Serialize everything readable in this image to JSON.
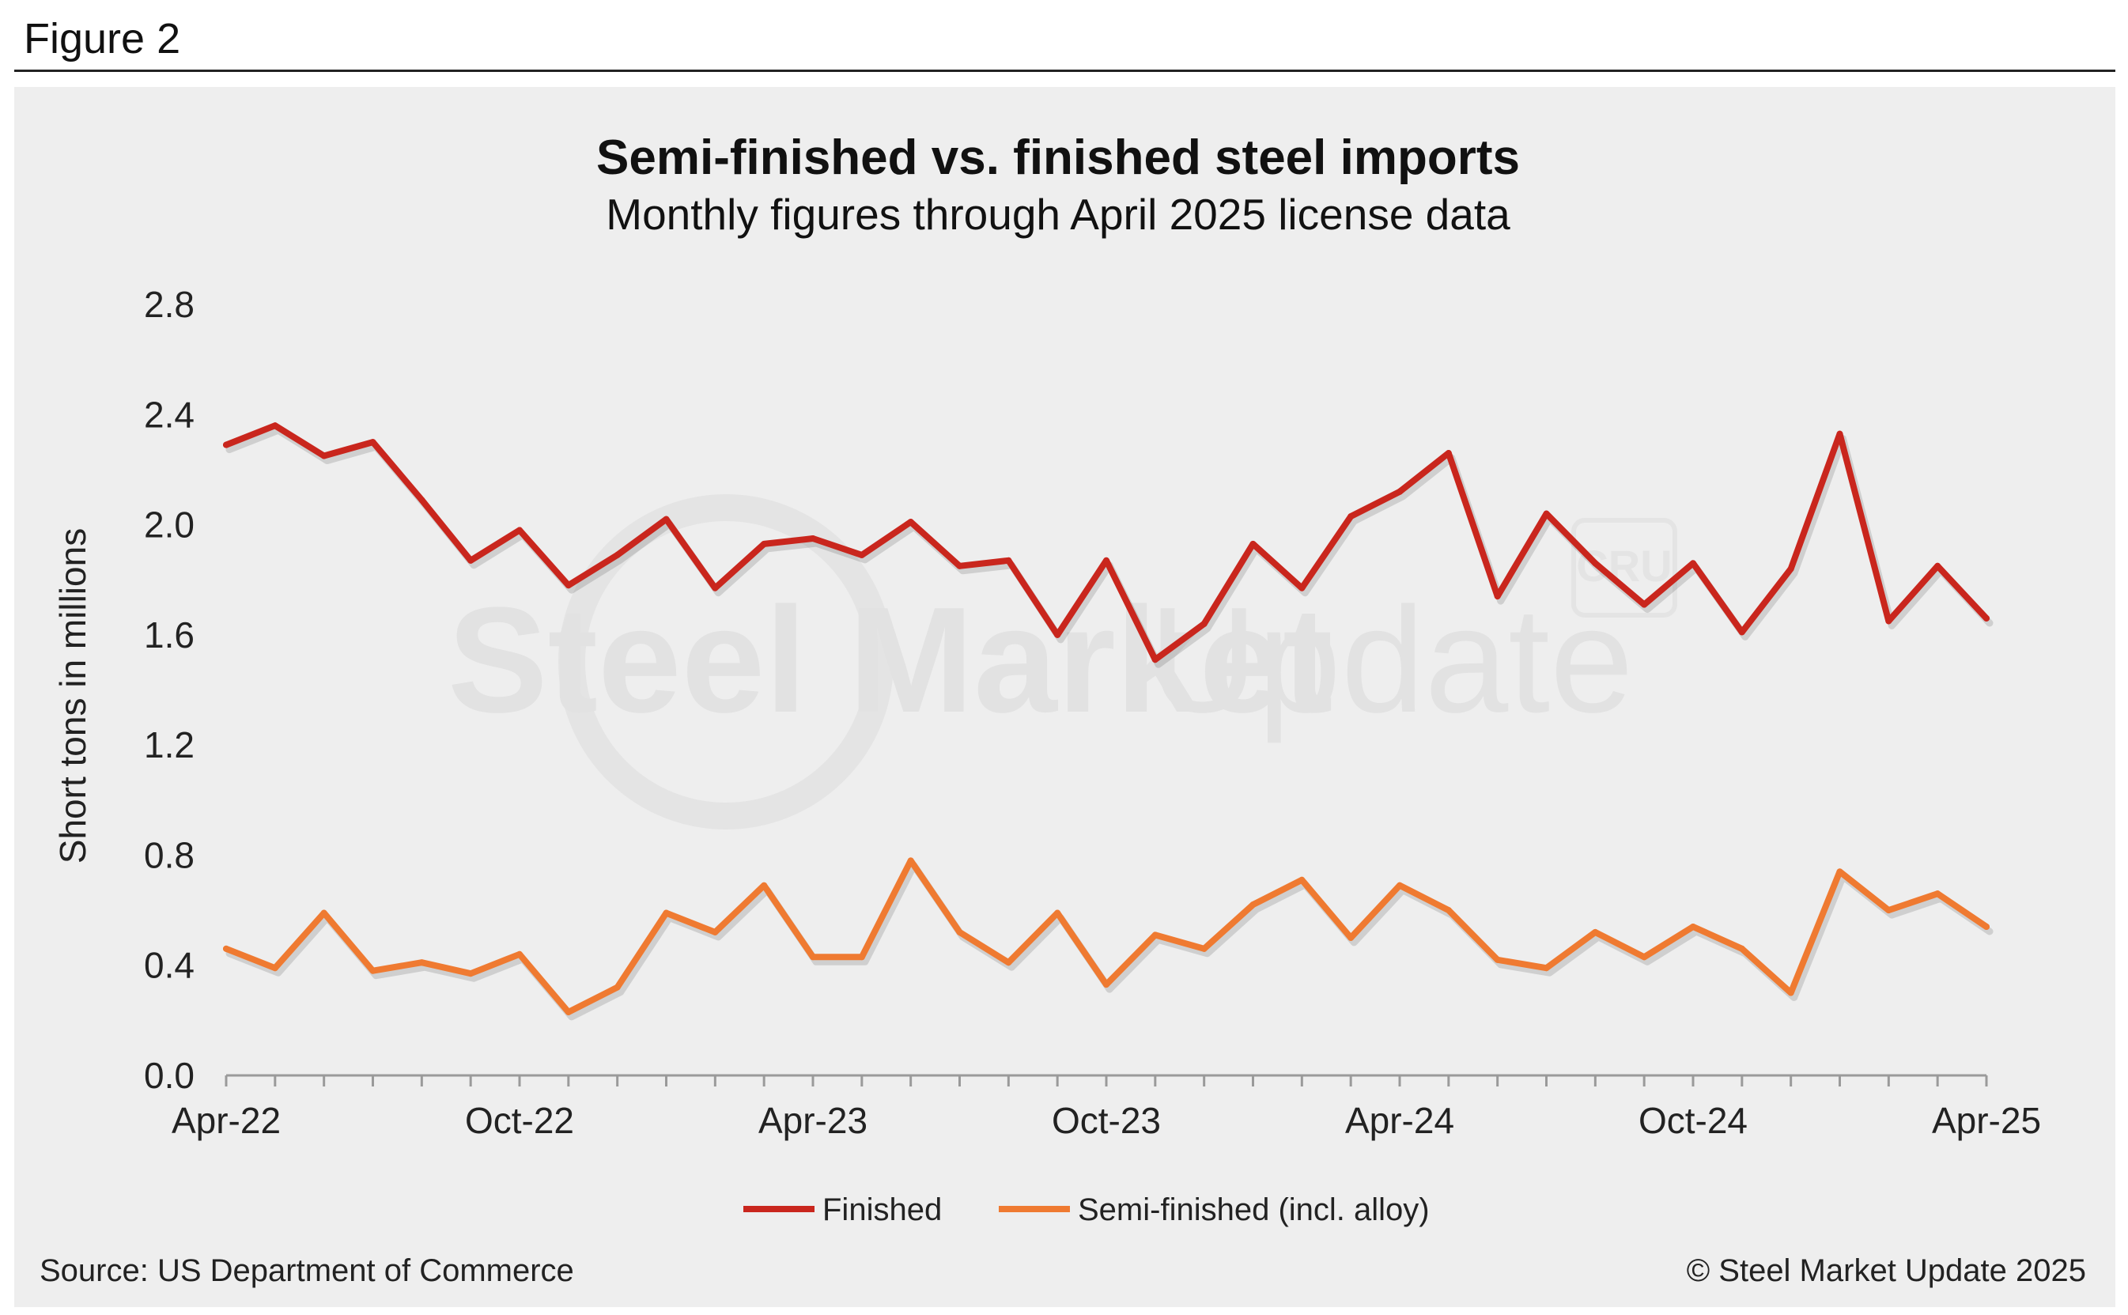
{
  "figure_label": "Figure 2",
  "source_note": "Source: US Department of Commerce",
  "copyright": "© Steel Market Update 2025",
  "watermark": {
    "word1": "Steel Market",
    "word2": "Update",
    "badge": "CRU"
  },
  "colors": {
    "finished": "#c9261d",
    "semi": "#ef7a31",
    "panel_bg": "#eeeeee",
    "axis": "#9a9a9a"
  },
  "chart_data": {
    "type": "line",
    "title": "Semi-finished vs. finished steel imports",
    "subtitle": "Monthly figures through April 2025 license data",
    "xlabel": "",
    "ylabel": "Short tons in millions",
    "ylim": [
      0,
      2.8
    ],
    "yticks": [
      "0.0",
      "0.4",
      "0.8",
      "1.2",
      "1.6",
      "2.0",
      "2.4",
      "2.8"
    ],
    "ytick_values": [
      0,
      0.4,
      0.8,
      1.2,
      1.6,
      2.0,
      2.4,
      2.8
    ],
    "x_label_indices": [
      0,
      6,
      12,
      18,
      24,
      30,
      36
    ],
    "x_labels": [
      "Apr-22",
      "Oct-22",
      "Apr-23",
      "Oct-23",
      "Apr-24",
      "Oct-24",
      "Apr-25"
    ],
    "legend_position": "bottom",
    "series": [
      {
        "name": "Finished",
        "values": [
          2.29,
          2.36,
          2.25,
          2.3,
          2.09,
          1.87,
          1.98,
          1.78,
          1.89,
          2.02,
          1.77,
          1.93,
          1.95,
          1.89,
          2.01,
          1.85,
          1.87,
          1.6,
          1.87,
          1.51,
          1.64,
          1.93,
          1.77,
          2.03,
          2.12,
          2.26,
          1.74,
          2.04,
          1.86,
          1.71,
          1.86,
          1.61,
          1.84,
          2.33,
          1.65,
          1.85,
          1.66
        ]
      },
      {
        "name": "Semi-finished (incl. alloy)",
        "values": [
          0.46,
          0.39,
          0.59,
          0.38,
          0.41,
          0.37,
          0.44,
          0.23,
          0.32,
          0.59,
          0.52,
          0.69,
          0.43,
          0.43,
          0.78,
          0.52,
          0.41,
          0.59,
          0.33,
          0.51,
          0.46,
          0.62,
          0.71,
          0.5,
          0.69,
          0.6,
          0.42,
          0.39,
          0.52,
          0.43,
          0.54,
          0.46,
          0.3,
          0.74,
          0.6,
          0.66,
          0.54
        ]
      }
    ]
  }
}
